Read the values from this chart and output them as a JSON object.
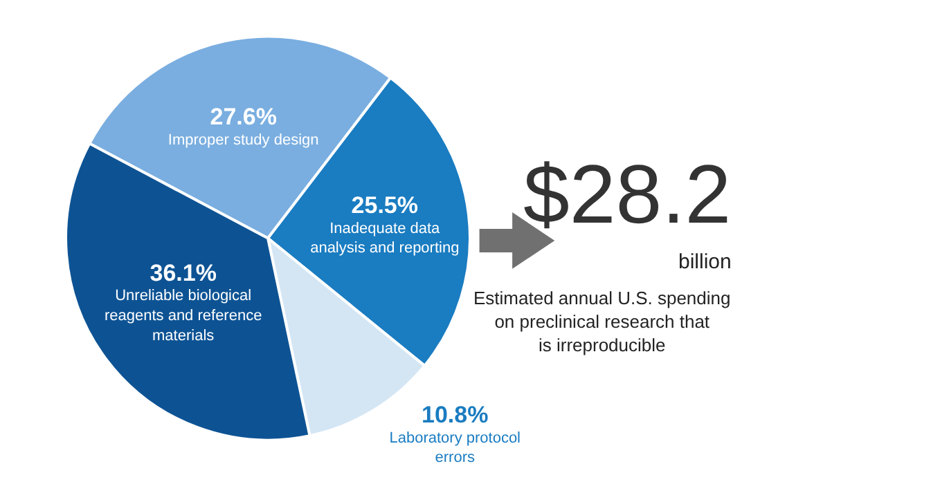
{
  "chart_data": [
    {
      "type": "pie",
      "categories": [
        "Improper study design",
        "Inadequate data analysis and reporting",
        "Laboratory protocol errors",
        "Unreliable biological reagents and reference materials"
      ],
      "values": [
        27.6,
        25.5,
        10.8,
        36.1
      ],
      "colors": [
        "#7aaee0",
        "#1a7cc1",
        "#d4e6f4",
        "#0d5394"
      ],
      "value_labels": [
        "27.6%",
        "25.5%",
        "10.8%",
        "36.1%"
      ]
    },
    {
      "type": "other",
      "title": "$28.2",
      "subtitle": "billion",
      "annotations": [
        "Estimated annual U.S. spending on preclinical research that is irreproducible"
      ]
    }
  ]
}
